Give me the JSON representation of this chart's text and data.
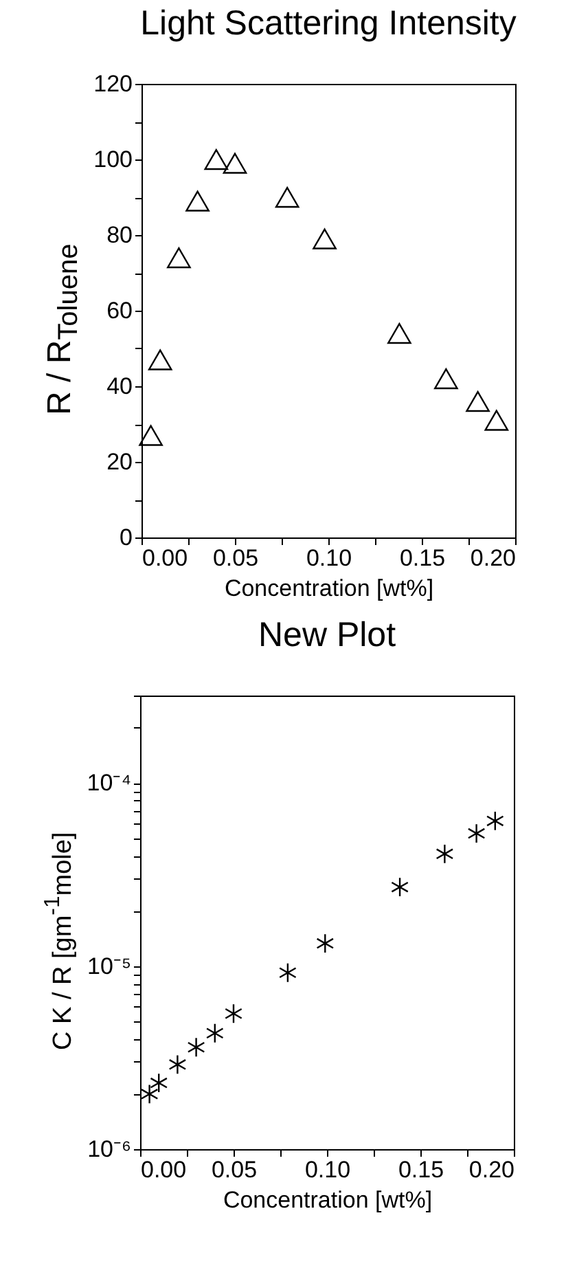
{
  "chart_data": [
    {
      "type": "scatter",
      "title": "Light Scattering Intensity",
      "xlabel": "Concentration [wt%]",
      "ylabel": "R / R$_{Toluene}$",
      "x": [
        0.005,
        0.01,
        0.02,
        0.03,
        0.04,
        0.05,
        0.078,
        0.098,
        0.138,
        0.163,
        0.18,
        0.19
      ],
      "series": [
        {
          "color": "#000000",
          "values": [
            27,
            47,
            74,
            89,
            100,
            99,
            90,
            79,
            54,
            42,
            36,
            31
          ]
        }
      ],
      "xlim": [
        0,
        0.2
      ],
      "xticks": [
        {
          "value": 0,
          "label": "0.00"
        },
        {
          "value": 0.025,
          "label": null
        },
        {
          "value": 0.05,
          "label": "0.05"
        },
        {
          "value": 0.075,
          "label": null
        },
        {
          "value": 0.1,
          "label": "0.10"
        },
        {
          "value": 0.125,
          "label": null
        },
        {
          "value": 0.15,
          "label": "0.15"
        },
        {
          "value": 0.175,
          "label": null
        },
        {
          "value": 0.2,
          "label": "0.20"
        }
      ],
      "ylim": [
        0,
        120
      ],
      "yticks": [
        0,
        {
          "value": 10,
          "label": null
        },
        20,
        {
          "value": 30,
          "label": null
        },
        40,
        {
          "value": 50,
          "label": null
        },
        60,
        {
          "value": 70,
          "label": null
        },
        80,
        {
          "value": 90,
          "label": null
        },
        100,
        {
          "value": 110,
          "label": null
        },
        120
      ],
      "marker": "triangle",
      "grid": false
    },
    {
      "type": "scatter",
      "title": "New Plot",
      "xlabel": "Concentration [wt%]",
      "ylabel": "C K / R  [gm$^{-1}$mole]",
      "x": [
        0.005,
        0.01,
        0.02,
        0.03,
        0.04,
        0.05,
        0.079,
        0.099,
        0.139,
        0.163,
        0.18,
        0.19
      ],
      "series": [
        {
          "color": "#000000",
          "values": [
            2e-06,
            2.3e-06,
            2.9e-06,
            3.6e-06,
            4.3e-06,
            5.5e-06,
            9.2e-06,
            1.33e-05,
            2.7e-05,
            4.1e-05,
            5.3e-05,
            6.2e-05
          ]
        }
      ],
      "xlim": [
        0,
        0.2
      ],
      "xticks": [
        {
          "value": 0,
          "label": "0.00"
        },
        {
          "value": 0.025,
          "label": null
        },
        {
          "value": 0.05,
          "label": "0.05"
        },
        {
          "value": 0.075,
          "label": null
        },
        {
          "value": 0.1,
          "label": "0.10"
        },
        {
          "value": 0.125,
          "label": null
        },
        {
          "value": 0.15,
          "label": "0.15"
        },
        {
          "value": 0.175,
          "label": null
        },
        {
          "value": 0.2,
          "label": "0.20"
        }
      ],
      "ylim": [
        1e-06,
        0.0003
      ],
      "yticks": [
        {
          "value": 1e-06,
          "label": "10⁻⁶"
        },
        {
          "value": 2e-06,
          "label": null
        },
        {
          "value": 3e-06,
          "label": null
        },
        {
          "value": 4e-06,
          "label": null
        },
        {
          "value": 5e-06,
          "label": null
        },
        {
          "value": 6e-06,
          "label": null
        },
        {
          "value": 7e-06,
          "label": null
        },
        {
          "value": 8e-06,
          "label": null
        },
        {
          "value": 9e-06,
          "label": null
        },
        {
          "value": 1e-05,
          "label": "10⁻⁵"
        },
        {
          "value": 2e-05,
          "label": null
        },
        {
          "value": 3e-05,
          "label": null
        },
        {
          "value": 4e-05,
          "label": null
        },
        {
          "value": 5e-05,
          "label": null
        },
        {
          "value": 6e-05,
          "label": null
        },
        {
          "value": 7e-05,
          "label": null
        },
        {
          "value": 8e-05,
          "label": null
        },
        {
          "value": 9e-05,
          "label": null
        },
        {
          "value": 0.0001,
          "label": "10⁻⁴"
        },
        {
          "value": 0.0002,
          "label": null
        },
        {
          "value": 0.0003,
          "label": null
        }
      ],
      "log": "y",
      "marker": "cross",
      "grid": false
    }
  ]
}
